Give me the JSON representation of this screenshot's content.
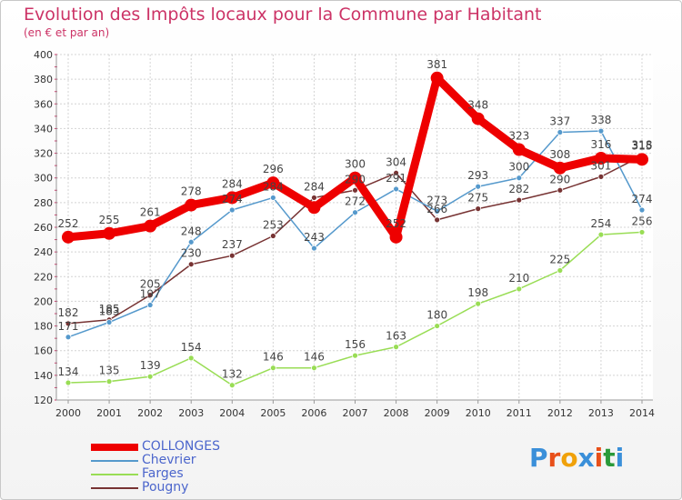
{
  "header": {
    "title": "Evolution des Impôts locaux pour la Commune par Habitant",
    "subtitle": "(en € et par an)"
  },
  "logo": {
    "text": "Proxiti",
    "colors": [
      "#3a8fd9",
      "#e8501a",
      "#f0a10a",
      "#3a8fd9",
      "#e8501a",
      "#2a9a3a",
      "#3a8fd9"
    ]
  },
  "chart_data": {
    "type": "line",
    "title": "Evolution des Impôts locaux pour la Commune par Habitant",
    "subtitle": "(en € et par an)",
    "xlabel": "",
    "ylabel": "",
    "ylim": [
      120,
      400
    ],
    "ytick_step": 20,
    "grid": true,
    "legend_position": "bottom-left",
    "categories": [
      "2000",
      "2001",
      "2002",
      "2003",
      "2004",
      "2005",
      "2006",
      "2007",
      "2008",
      "2009",
      "2010",
      "2011",
      "2012",
      "2013",
      "2014"
    ],
    "series": [
      {
        "name": "COLLONGES",
        "color": "#ee0000",
        "values": [
          252,
          255,
          261,
          278,
          284,
          296,
          276,
          300,
          252,
          381,
          348,
          323,
          308,
          316,
          315
        ],
        "labels": [
          "252",
          "255",
          "261",
          "278",
          "284",
          "296",
          "",
          "300",
          "252",
          "381",
          "348",
          "323",
          "308",
          "316",
          "315"
        ]
      },
      {
        "name": "Chevrier",
        "color": "#5599cc",
        "values": [
          171,
          183,
          197,
          248,
          274,
          284,
          243,
          272,
          291,
          273,
          293,
          300,
          337,
          338,
          274
        ],
        "labels": [
          "171",
          "183",
          "197",
          "248",
          "274",
          "284",
          "243",
          "272",
          "291",
          "273",
          "293",
          "300",
          "337",
          "338",
          "274"
        ]
      },
      {
        "name": "Farges",
        "color": "#99dd55",
        "values": [
          134,
          135,
          139,
          154,
          132,
          146,
          146,
          156,
          163,
          180,
          198,
          210,
          225,
          254,
          256
        ],
        "labels": [
          "134",
          "135",
          "139",
          "154",
          "132",
          "146",
          "146",
          "156",
          "163",
          "180",
          "198",
          "210",
          "225",
          "254",
          "256"
        ]
      },
      {
        "name": "Pougny",
        "color": "#773333",
        "values": [
          182,
          185,
          205,
          230,
          237,
          253,
          284,
          290,
          304,
          266,
          275,
          282,
          290,
          301,
          318
        ],
        "labels": [
          "182",
          "185",
          "205",
          "230",
          "237",
          "253",
          "284",
          "290",
          "304",
          "266",
          "275",
          "282",
          "290",
          "301",
          "318"
        ]
      }
    ]
  }
}
